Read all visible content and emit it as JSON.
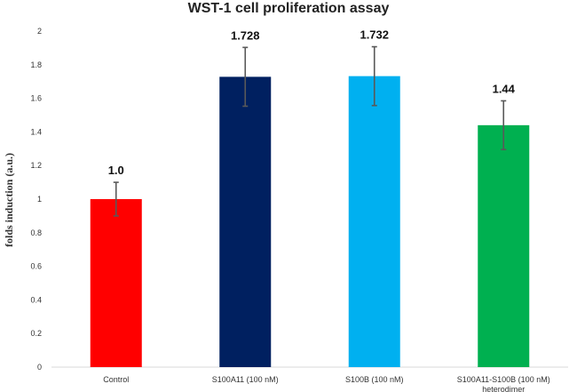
{
  "chart_data": {
    "type": "bar",
    "title": "WST-1 cell proliferation assay",
    "ylabel": "folds induction (a.u.)",
    "xlabel": "",
    "ylim": [
      0,
      2
    ],
    "yticks": [
      "0",
      "0.2",
      "0.4",
      "0.6",
      "0.8",
      "1",
      "1.2",
      "1.4",
      "1.6",
      "1.8",
      "2"
    ],
    "grid": false,
    "legend": "none",
    "categories": [
      [
        "Control"
      ],
      [
        "S100A11 (100 nM)"
      ],
      [
        "S100B (100 nM)"
      ],
      [
        "S100A11-S100B (100 nM)",
        "heterodimer"
      ]
    ],
    "values": [
      1.0,
      1.728,
      1.732,
      1.44
    ],
    "errors": [
      0.1,
      0.175,
      0.175,
      0.145
    ],
    "data_labels": [
      "1.0",
      "1.728",
      "1.732",
      "1.44"
    ],
    "colors": [
      "#ff0000",
      "#002060",
      "#00b0f0",
      "#00b050"
    ],
    "error_bar_color": "#595959"
  }
}
